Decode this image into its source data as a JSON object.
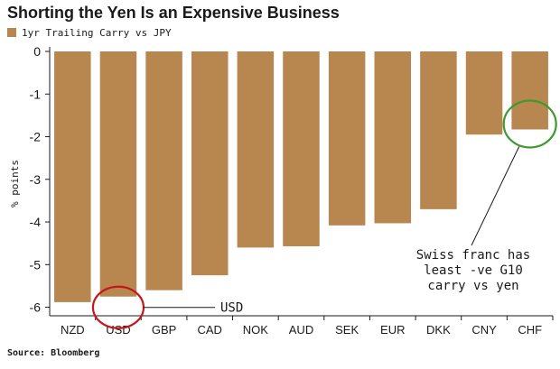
{
  "chart_data": {
    "type": "bar",
    "title": "Shorting the Yen Is an Expensive Business",
    "legend": "1yr Trailing Carry vs JPY",
    "ylabel": "% points",
    "xlabel": "",
    "source": "Source: Bloomberg",
    "categories": [
      "NZD",
      "USD",
      "GBP",
      "CAD",
      "NOK",
      "AUD",
      "SEK",
      "EUR",
      "DKK",
      "CNY",
      "CHF"
    ],
    "series": [
      {
        "name": "1yr Trailing Carry vs JPY",
        "values": [
          -5.88,
          -5.75,
          -5.6,
          -5.25,
          -4.6,
          -4.57,
          -4.08,
          -4.03,
          -3.7,
          -1.95,
          -1.83
        ]
      }
    ],
    "ylim": [
      -6.2,
      0
    ],
    "yticks": [
      0,
      -1,
      -2,
      -3,
      -4,
      -5,
      -6
    ],
    "grid": false,
    "legend_position": "top-left",
    "colors": {
      "bar": "#b8864f",
      "red_circle": "#c4161c",
      "green_circle": "#3f9a2e",
      "axis": "#1a1a1a"
    },
    "annotations": [
      {
        "text": "USD",
        "target": "USD",
        "circle": "red_circle"
      },
      {
        "text": [
          "Swiss franc has",
          "least -ve G10",
          "carry vs yen"
        ],
        "target": "CHF",
        "circle": "green_circle"
      }
    ]
  }
}
